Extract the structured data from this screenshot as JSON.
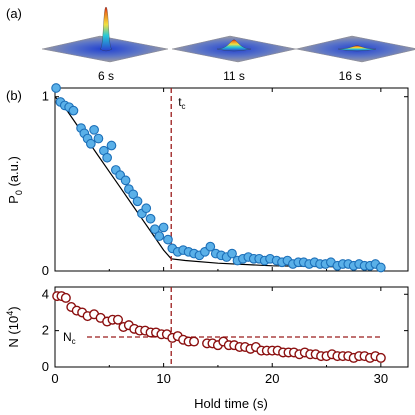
{
  "panel_labels": {
    "a": "(a)",
    "b": "(b)"
  },
  "insets": [
    {
      "time_label": "6 s",
      "peak": 1.0
    },
    {
      "time_label": "11 s",
      "peak": 0.22
    },
    {
      "time_label": "16 s",
      "peak": 0.08
    }
  ],
  "colors": {
    "top_series_fill": "#5ab0e8",
    "top_series_edge": "#1c6fb8",
    "bottom_series_edge": "#8b0f0f",
    "marker_line": "#9b1c1c",
    "fit_line": "#000000"
  },
  "chart_data": [
    {
      "type": "scatter",
      "xlabel": "",
      "ylabel": "P",
      "ylabel_sub": "0",
      "ylabel_unit": " (a.u.)",
      "xlim": [
        0,
        32.5
      ],
      "ylim": [
        0,
        1.05
      ],
      "yticks": [
        0,
        1
      ],
      "xticks": [
        0,
        10,
        20,
        30
      ],
      "grid": false,
      "annotations": [
        {
          "text": "t",
          "sub": "c",
          "x": 10.7
        }
      ],
      "vline_x": 10.7,
      "fit_curve": {
        "x": [
          0,
          1,
          2,
          3,
          4,
          5,
          6,
          7,
          8,
          9,
          10,
          10.7,
          12,
          15,
          20,
          25,
          30
        ],
        "y": [
          1.0,
          0.93,
          0.84,
          0.75,
          0.66,
          0.57,
          0.48,
          0.39,
          0.3,
          0.21,
          0.12,
          0.07,
          0.06,
          0.045,
          0.03,
          0.025,
          0.02
        ]
      },
      "series": [
        {
          "values": [
            [
              0.1,
              1.05
            ],
            [
              0.5,
              0.97
            ],
            [
              0.9,
              0.95
            ],
            [
              1.3,
              0.94
            ],
            [
              1.7,
              0.92
            ],
            [
              2.4,
              0.82
            ],
            [
              2.7,
              0.79
            ],
            [
              3.0,
              0.76
            ],
            [
              3.3,
              0.73
            ],
            [
              3.6,
              0.81
            ],
            [
              4.0,
              0.76
            ],
            [
              4.5,
              0.69
            ],
            [
              4.8,
              0.65
            ],
            [
              5.2,
              0.72
            ],
            [
              5.6,
              0.58
            ],
            [
              6.0,
              0.55
            ],
            [
              6.5,
              0.52
            ],
            [
              6.8,
              0.47
            ],
            [
              7.2,
              0.44
            ],
            [
              7.6,
              0.4
            ],
            [
              8.0,
              0.33
            ],
            [
              8.4,
              0.36
            ],
            [
              8.8,
              0.3
            ],
            [
              9.2,
              0.24
            ],
            [
              9.6,
              0.2
            ],
            [
              10.0,
              0.25
            ],
            [
              10.4,
              0.18
            ],
            [
              10.8,
              0.13
            ],
            [
              11.3,
              0.11
            ],
            [
              11.8,
              0.12
            ],
            [
              12.3,
              0.11
            ],
            [
              12.8,
              0.1
            ],
            [
              13.3,
              0.09
            ],
            [
              13.8,
              0.11
            ],
            [
              14.3,
              0.14
            ],
            [
              14.8,
              0.1
            ],
            [
              15.3,
              0.09
            ],
            [
              15.8,
              0.08
            ],
            [
              16.3,
              0.1
            ],
            [
              16.8,
              0.06
            ],
            [
              17.3,
              0.07
            ],
            [
              17.8,
              0.08
            ],
            [
              18.3,
              0.07
            ],
            [
              18.8,
              0.07
            ],
            [
              19.3,
              0.06
            ],
            [
              19.8,
              0.07
            ],
            [
              20.4,
              0.06
            ],
            [
              20.9,
              0.05
            ],
            [
              21.4,
              0.06
            ],
            [
              21.9,
              0.04
            ],
            [
              22.4,
              0.05
            ],
            [
              22.9,
              0.05
            ],
            [
              23.4,
              0.04
            ],
            [
              23.9,
              0.05
            ],
            [
              24.4,
              0.04
            ],
            [
              24.9,
              0.04
            ],
            [
              25.4,
              0.05
            ],
            [
              26.0,
              0.03
            ],
            [
              26.5,
              0.04
            ],
            [
              27.0,
              0.04
            ],
            [
              27.5,
              0.03
            ],
            [
              28.0,
              0.04
            ],
            [
              28.5,
              0.03
            ],
            [
              29.0,
              0.03
            ],
            [
              29.5,
              0.04
            ],
            [
              30.0,
              0.02
            ]
          ]
        }
      ]
    },
    {
      "type": "scatter",
      "xlabel": "Hold time (s)",
      "ylabel": "N (10",
      "ylabel_sup": "4",
      "ylabel_end": ")",
      "xlim": [
        0,
        32.5
      ],
      "ylim": [
        0,
        4.4
      ],
      "yticks": [
        0,
        2,
        4
      ],
      "xticks": [
        0,
        10,
        20,
        30
      ],
      "grid": false,
      "annotations": [
        {
          "text": "N",
          "sub": "c",
          "y": 1.65
        }
      ],
      "vline_x": 10.7,
      "hline_y": 1.65,
      "series": [
        {
          "values": [
            [
              0.2,
              3.9
            ],
            [
              0.6,
              3.9
            ],
            [
              1.0,
              3.8
            ],
            [
              1.5,
              3.3
            ],
            [
              2.0,
              3.1
            ],
            [
              2.5,
              3.0
            ],
            [
              3.0,
              2.8
            ],
            [
              3.6,
              2.9
            ],
            [
              4.2,
              2.7
            ],
            [
              4.8,
              2.5
            ],
            [
              5.3,
              2.6
            ],
            [
              5.8,
              2.6
            ],
            [
              6.3,
              2.2
            ],
            [
              6.8,
              2.3
            ],
            [
              7.3,
              2.1
            ],
            [
              7.8,
              2.0
            ],
            [
              8.3,
              2.0
            ],
            [
              8.8,
              1.9
            ],
            [
              9.3,
              1.9
            ],
            [
              9.8,
              1.8
            ],
            [
              10.3,
              1.8
            ],
            [
              10.8,
              1.6
            ],
            [
              11.3,
              1.7
            ],
            [
              11.8,
              1.5
            ],
            [
              12.3,
              1.4
            ],
            [
              12.8,
              1.4
            ],
            [
              14.0,
              1.3
            ],
            [
              14.5,
              1.3
            ],
            [
              15.0,
              1.2
            ],
            [
              15.5,
              1.4
            ],
            [
              16.0,
              1.2
            ],
            [
              16.5,
              1.2
            ],
            [
              17.0,
              1.1
            ],
            [
              17.5,
              1.1
            ],
            [
              18.0,
              1.0
            ],
            [
              18.5,
              1.1
            ],
            [
              19.0,
              0.9
            ],
            [
              19.5,
              0.9
            ],
            [
              20.0,
              0.9
            ],
            [
              20.5,
              0.9
            ],
            [
              21.0,
              0.8
            ],
            [
              21.5,
              0.8
            ],
            [
              22.0,
              0.8
            ],
            [
              22.5,
              0.7
            ],
            [
              23.0,
              0.8
            ],
            [
              23.5,
              0.7
            ],
            [
              24.0,
              0.7
            ],
            [
              24.5,
              0.6
            ],
            [
              25.0,
              0.6
            ],
            [
              25.5,
              0.7
            ],
            [
              26.0,
              0.6
            ],
            [
              26.5,
              0.6
            ],
            [
              27.0,
              0.6
            ],
            [
              27.5,
              0.5
            ],
            [
              28.0,
              0.6
            ],
            [
              28.5,
              0.6
            ],
            [
              29.0,
              0.5
            ],
            [
              29.5,
              0.6
            ],
            [
              30.0,
              0.5
            ]
          ]
        }
      ]
    }
  ]
}
